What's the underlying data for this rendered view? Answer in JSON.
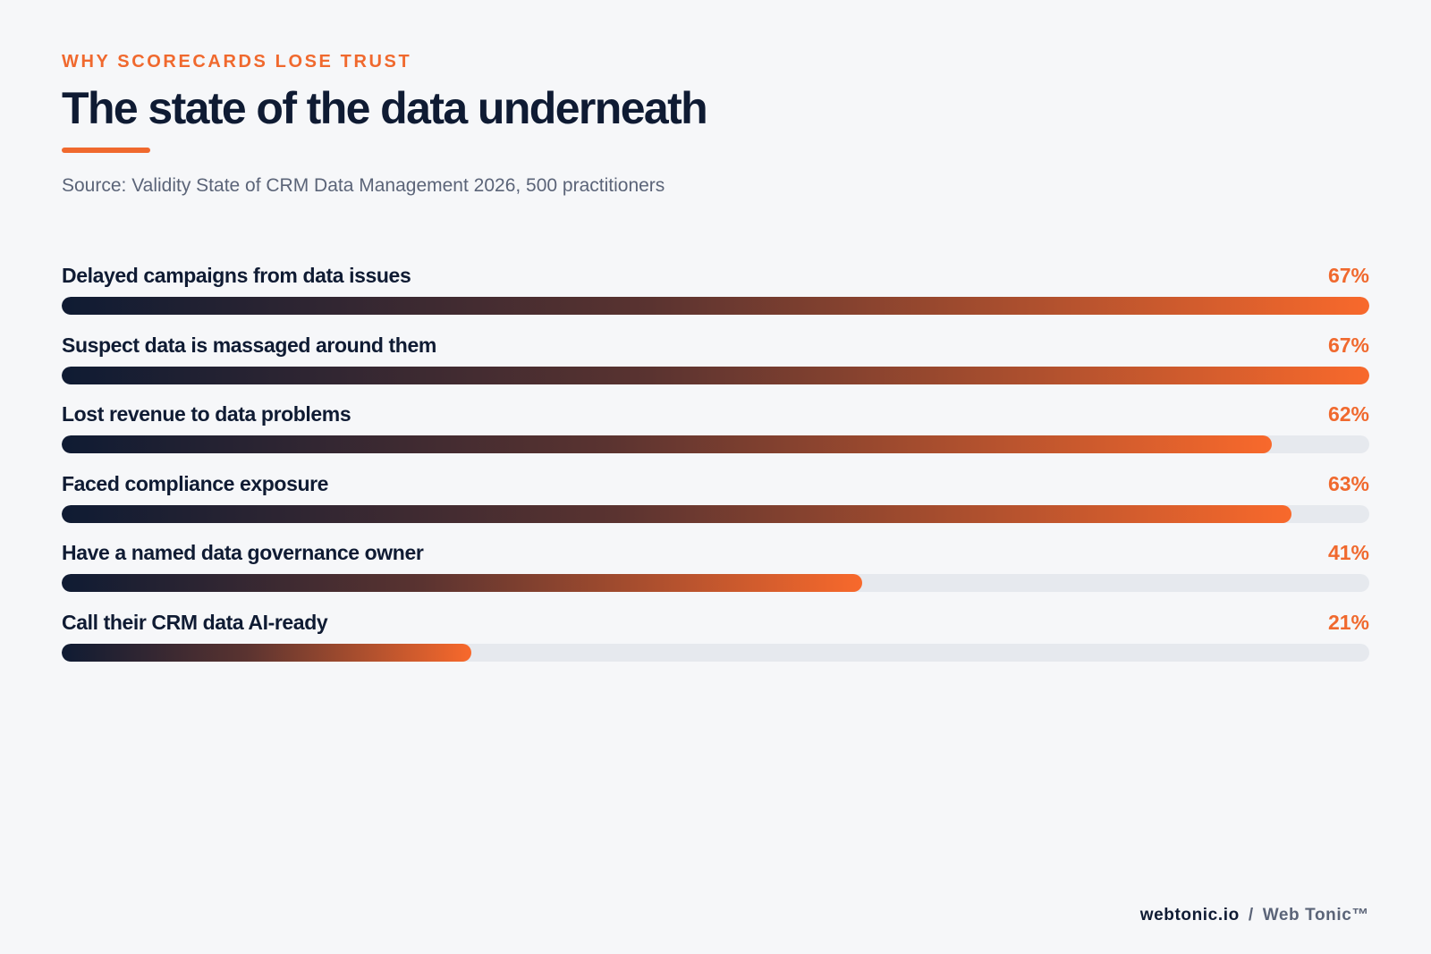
{
  "header": {
    "eyebrow": "WHY SCORECARDS LOSE TRUST",
    "title": "The state of the data underneath",
    "source": "Source: Validity State of CRM Data Management 2026, 500 practitioners"
  },
  "colors": {
    "accent": "#f0692e",
    "navy": "#0f1b33",
    "track": "#e6e9ee",
    "background": "#f6f7f9"
  },
  "chart_data": {
    "type": "bar",
    "orientation": "horizontal",
    "title": "The state of the data underneath",
    "categories": [
      "Delayed campaigns from data issues",
      "Suspect data is massaged around them",
      "Lost revenue to data problems",
      "Faced compliance exposure",
      "Have a named data governance owner",
      "Call their CRM data AI-ready"
    ],
    "values": [
      67,
      67,
      62,
      63,
      41,
      21
    ],
    "value_labels": [
      "67%",
      "67%",
      "62%",
      "63%",
      "41%",
      "21%"
    ],
    "xlim": [
      0,
      67
    ],
    "unit": "%",
    "grid": false,
    "legend": "none"
  },
  "footer": {
    "domain": "webtonic.io",
    "separator": "/",
    "brand": "Web Tonic™"
  }
}
